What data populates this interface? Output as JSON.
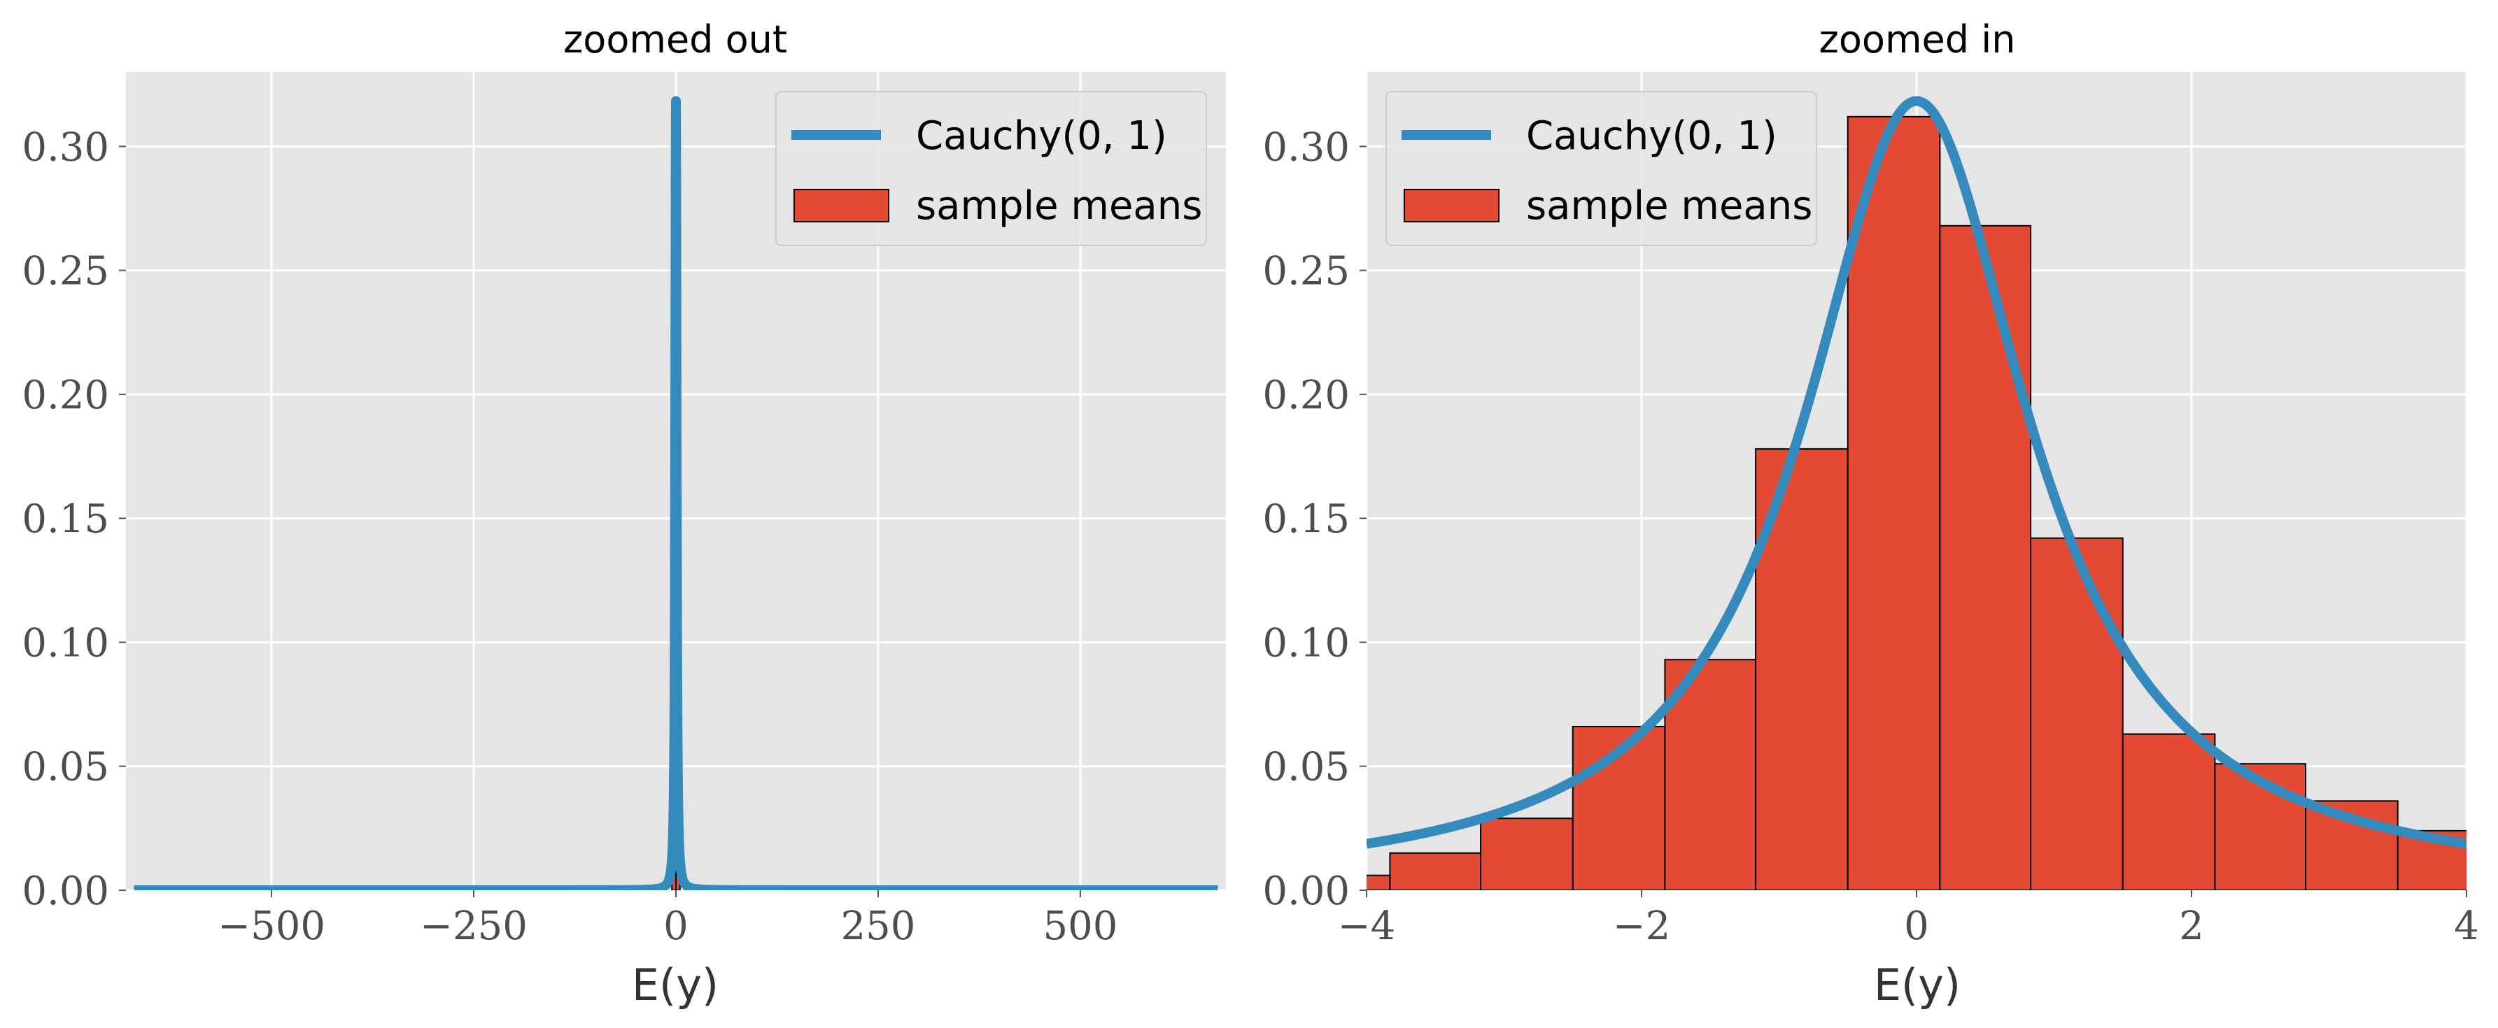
{
  "colors": {
    "panel_bg": "#e5e5e5",
    "grid": "#ffffff",
    "bar_fill": "#e24a33",
    "bar_edge": "#000000",
    "line": "#348abd"
  },
  "chart_data": [
    {
      "type": "bar",
      "title": "zoomed out",
      "xlabel": "E(y)",
      "ylabel": "",
      "xlim": [
        -680,
        680
      ],
      "ylim": [
        0,
        0.33
      ],
      "xticks": [
        -500,
        -250,
        0,
        250,
        500
      ],
      "xtick_labels": [
        "−500",
        "−250",
        "0",
        "250",
        "500"
      ],
      "yticks": [
        0.0,
        0.05,
        0.1,
        0.15,
        0.2,
        0.25,
        0.3
      ],
      "ytick_labels": [
        "0.00",
        "0.05",
        "0.10",
        "0.15",
        "0.20",
        "0.25",
        "0.30"
      ],
      "grid": true,
      "legend_placement": "top-right",
      "line_series": {
        "name": "Cauchy(0, 1)",
        "function": "cauchy",
        "loc": 0,
        "scale": 1,
        "x_range": [
          -670,
          670
        ]
      },
      "histogram": {
        "name": "sample means",
        "bins": [
          [
            -5,
            0,
            0.035
          ],
          [
            0,
            5,
            0.035
          ]
        ]
      }
    },
    {
      "type": "bar",
      "title": "zoomed in",
      "xlabel": "E(y)",
      "ylabel": "",
      "xlim": [
        -4,
        4
      ],
      "ylim": [
        0,
        0.33
      ],
      "xticks": [
        -4,
        -2,
        0,
        2,
        4
      ],
      "xtick_labels": [
        "−4",
        "−2",
        "0",
        "2",
        "4"
      ],
      "yticks": [
        0.0,
        0.05,
        0.1,
        0.15,
        0.2,
        0.25,
        0.3
      ],
      "ytick_labels": [
        "0.00",
        "0.05",
        "0.10",
        "0.15",
        "0.20",
        "0.25",
        "0.30"
      ],
      "grid": true,
      "legend_placement": "top-left",
      "line_series": {
        "name": "Cauchy(0, 1)",
        "function": "cauchy",
        "loc": 0,
        "scale": 1,
        "x_range": [
          -4,
          4
        ]
      },
      "histogram": {
        "name": "sample means",
        "bins": [
          [
            -4.5,
            -3.83,
            0.006
          ],
          [
            -3.83,
            -3.17,
            0.015
          ],
          [
            -3.17,
            -2.5,
            0.029
          ],
          [
            -2.5,
            -1.83,
            0.066
          ],
          [
            -1.83,
            -1.17,
            0.093
          ],
          [
            -1.17,
            -0.5,
            0.178
          ],
          [
            -0.5,
            0.17,
            0.312
          ],
          [
            0.17,
            0.83,
            0.268
          ],
          [
            0.83,
            1.5,
            0.142
          ],
          [
            1.5,
            2.17,
            0.063
          ],
          [
            2.17,
            2.83,
            0.051
          ],
          [
            2.83,
            3.5,
            0.036
          ],
          [
            3.5,
            4.17,
            0.024
          ]
        ]
      }
    }
  ]
}
